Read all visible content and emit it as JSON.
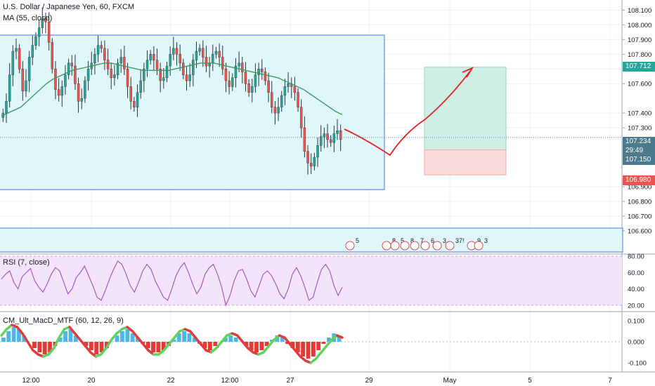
{
  "colors": {
    "up_candle": "#26a69a",
    "down_candle": "#ef5350",
    "ma_line": "#3c9a5f",
    "rsi_line": "#9c4fb8",
    "rsi_band": "#f3e3fb",
    "box_fill": "#e0f7fa",
    "box_border": "#4a73e8",
    "target_zone": "#cfeee6",
    "stop_zone": "#fadada",
    "arrow": "#e22222",
    "axis_text": "#131722",
    "current_price_tag": "#4a7a8c",
    "target_tag": "#26a69a",
    "stop_tag": "#ef5350",
    "macd_up": "#4db6e6",
    "macd_down": "#e53935"
  },
  "chart_data": [
    {
      "type": "candlestick",
      "title": "U.S. Dollar / Japanese Yen, 60, FXCM",
      "indicator": "MA (55, close)",
      "ylim": [
        106.48,
        108.14
      ],
      "y_ticks": [
        "108.100",
        "108.000",
        "107.900",
        "107.800",
        "107.700",
        "107.600",
        "107.400",
        "107.300",
        "106.900",
        "106.800",
        "106.700",
        "106.600"
      ],
      "x_ticks": [
        "12:00",
        "20",
        "22",
        "12:00",
        "27",
        "29",
        "May",
        "5",
        "7"
      ],
      "last_price": "107.234",
      "countdown": "29:49",
      "entry_price": "107.150",
      "target_price": "107.712",
      "stop_price": "106.980",
      "range_box": {
        "top": 107.93,
        "bottom": 106.88
      },
      "event_markers": [
        "5",
        "8",
        "5",
        "8",
        "7",
        "6",
        "3",
        "37!",
        "9",
        "3"
      ],
      "close_path": [
        107.4,
        107.48,
        107.66,
        107.82,
        107.84,
        107.7,
        107.55,
        107.62,
        107.78,
        107.86,
        107.92,
        107.98,
        108.04,
        108.02,
        107.88,
        107.7,
        107.56,
        107.52,
        107.58,
        107.66,
        107.74,
        107.72,
        107.6,
        107.48,
        107.5,
        107.62,
        107.7,
        107.74,
        107.8,
        107.86,
        107.84,
        107.76,
        107.7,
        107.64,
        107.66,
        107.74,
        107.78,
        107.7,
        107.58,
        107.48,
        107.44,
        107.54,
        107.62,
        107.7,
        107.76,
        107.8,
        107.76,
        107.7,
        107.62,
        107.64,
        107.72,
        107.8,
        107.84,
        107.8,
        107.74,
        107.66,
        107.62,
        107.66,
        107.76,
        107.82,
        107.84,
        107.78,
        107.72,
        107.74,
        107.8,
        107.82,
        107.78,
        107.7,
        107.62,
        107.58,
        107.64,
        107.72,
        107.74,
        107.68,
        107.6,
        107.54,
        107.58,
        107.66,
        107.7,
        107.68,
        107.62,
        107.54,
        107.44,
        107.4,
        107.44,
        107.52,
        107.58,
        107.6,
        107.58,
        107.54,
        107.44,
        107.3,
        107.14,
        107.06,
        107.04,
        107.1,
        107.18,
        107.24,
        107.26,
        107.22,
        107.2,
        107.26,
        107.28,
        107.22
      ],
      "ma_path": [
        107.38,
        107.4,
        107.42,
        107.44,
        107.48,
        107.52,
        107.56,
        107.6,
        107.63,
        107.65,
        107.67,
        107.69,
        107.7,
        107.71,
        107.72,
        107.73,
        107.74,
        107.74,
        107.73,
        107.72,
        107.71,
        107.7,
        107.69,
        107.69,
        107.69,
        107.69,
        107.69,
        107.7,
        107.71,
        107.72,
        107.73,
        107.74,
        107.74,
        107.74,
        107.73,
        107.72,
        107.71,
        107.7,
        107.69,
        107.68,
        107.67,
        107.66,
        107.65,
        107.64,
        107.62,
        107.6,
        107.58,
        107.56,
        107.53,
        107.5,
        107.47,
        107.44,
        107.41,
        107.39
      ]
    },
    {
      "type": "line",
      "title": "RSI (7, close)",
      "ylim": [
        20,
        80
      ],
      "y_ticks": [
        "80.00",
        "60.00",
        "40.00",
        "20.00"
      ],
      "values": [
        52,
        58,
        62,
        48,
        40,
        55,
        60,
        65,
        50,
        42,
        36,
        46,
        58,
        66,
        62,
        48,
        34,
        40,
        54,
        60,
        68,
        56,
        44,
        30,
        26,
        38,
        52,
        64,
        74,
        70,
        58,
        44,
        36,
        48,
        62,
        70,
        64,
        50,
        40,
        30,
        26,
        40,
        56,
        66,
        72,
        60,
        46,
        34,
        42,
        58,
        66,
        70,
        58,
        42,
        20,
        32,
        50,
        62,
        64,
        52,
        38,
        30,
        44,
        58,
        62,
        56,
        46,
        34,
        28,
        40,
        58,
        66,
        56,
        42,
        26,
        30,
        48,
        64,
        70,
        62,
        44,
        32,
        42
      ]
    },
    {
      "type": "bar",
      "title": "CM_Ult_MacD_MTF (60, 12, 26, 9)",
      "ylim": [
        -0.13,
        0.13
      ],
      "y_ticks": [
        "0.100",
        "0.000",
        "-0.100"
      ],
      "hist": [
        0.02,
        0.05,
        0.07,
        0.06,
        0.03,
        0.0,
        -0.03,
        -0.05,
        -0.06,
        -0.05,
        -0.02,
        0.02,
        0.05,
        0.06,
        0.03,
        0.0,
        -0.02,
        -0.04,
        -0.06,
        -0.05,
        -0.03,
        0.0,
        0.03,
        0.05,
        0.06,
        0.04,
        0.02,
        -0.01,
        -0.03,
        -0.05,
        -0.05,
        -0.04,
        -0.02,
        0.01,
        0.04,
        0.05,
        0.04,
        0.02,
        -0.01,
        -0.03,
        -0.04,
        -0.02,
        0.0,
        0.02,
        0.03,
        0.02,
        0.0,
        -0.02,
        -0.04,
        -0.05,
        -0.04,
        -0.02,
        0.01,
        0.03,
        0.02,
        -0.01,
        -0.03,
        -0.05,
        -0.07,
        -0.08,
        -0.07,
        -0.04,
        -0.01,
        0.02,
        0.04,
        0.03
      ],
      "macd": [
        0.03,
        0.06,
        0.08,
        0.07,
        0.04,
        0.0,
        -0.04,
        -0.06,
        -0.07,
        -0.06,
        -0.03,
        0.02,
        0.06,
        0.07,
        0.04,
        0.01,
        -0.02,
        -0.05,
        -0.07,
        -0.06,
        -0.03,
        0.01,
        0.04,
        0.06,
        0.07,
        0.05,
        0.02,
        -0.01,
        -0.04,
        -0.06,
        -0.06,
        -0.04,
        -0.01,
        0.02,
        0.05,
        0.06,
        0.05,
        0.02,
        -0.01,
        -0.04,
        -0.05,
        -0.03,
        0.0,
        0.03,
        0.04,
        0.03,
        0.0,
        -0.03,
        -0.05,
        -0.06,
        -0.05,
        -0.02,
        0.01,
        0.03,
        0.02,
        -0.01,
        -0.04,
        -0.07,
        -0.09,
        -0.1,
        -0.08,
        -0.05,
        -0.02,
        0.01,
        0.03,
        0.02
      ]
    }
  ],
  "legends": {
    "main_title": "U.S. Dollar / Japanese Yen, 60, FXCM",
    "ma": "MA (55, close)",
    "rsi": "RSI (7, close)",
    "macd": "CM_Ult_MacD_MTF (60, 12, 26, 9)"
  },
  "tags": {
    "target": "107.712",
    "last": "107.234",
    "countdown": "29:49",
    "entry": "107.150",
    "stop": "106.980"
  }
}
